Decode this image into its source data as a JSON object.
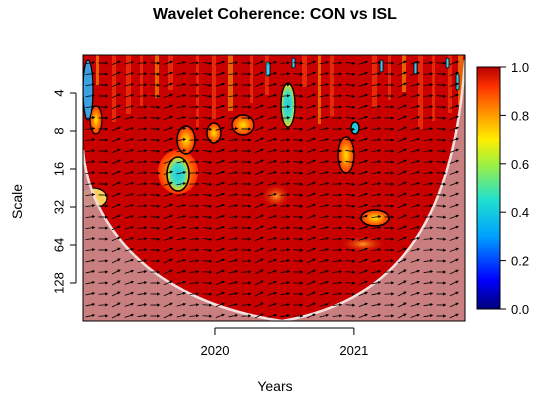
{
  "chart_data": {
    "type": "heatmap",
    "title": "Wavelet Coherence: CON vs ISL",
    "xlabel": "Years",
    "ylabel": "Scale",
    "x_ticks": [
      "2020",
      "2021"
    ],
    "x_tick_values": [
      2020.0,
      2021.0
    ],
    "xlim": [
      2019.05,
      2021.8
    ],
    "y_ticks": [
      "4",
      "8",
      "16",
      "32",
      "64",
      "128"
    ],
    "y_tick_values": [
      4,
      8,
      16,
      32,
      64,
      128
    ],
    "ylim": [
      2,
      256
    ],
    "y_scale": "log2",
    "y_reversed": true,
    "colorbar": {
      "ticks": [
        "0.0",
        "0.2",
        "0.4",
        "0.6",
        "0.8",
        "1.0"
      ],
      "tick_values": [
        0.0,
        0.2,
        0.4,
        0.6,
        0.8,
        1.0
      ],
      "range": [
        0,
        1
      ]
    },
    "colors": {
      "high": "#c80000",
      "mid_high": "#ff6a00",
      "mid": "#ffee00",
      "mid_low": "#20e0d0",
      "low": "#00007a",
      "cone_shade": "#c98a8a"
    },
    "legend": "right"
  }
}
